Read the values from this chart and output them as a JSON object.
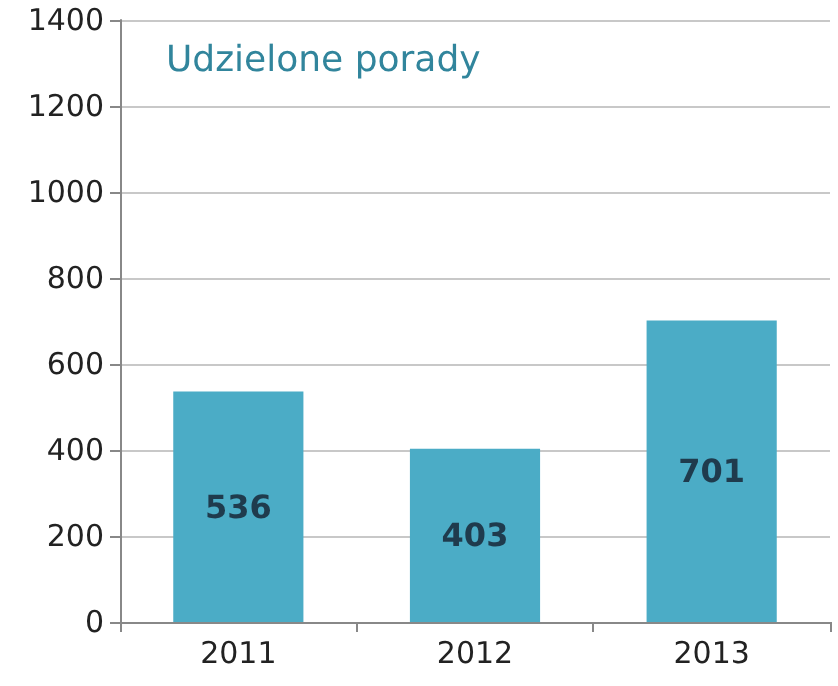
{
  "chart_data": {
    "type": "bar",
    "title": "Udzielone porady",
    "categories": [
      "2011",
      "2012",
      "2013"
    ],
    "values": [
      536,
      403,
      701
    ],
    "color": "#4bacc6",
    "ylim": [
      0,
      1400
    ],
    "yticks": [
      0,
      200,
      400,
      600,
      800,
      1000,
      1200,
      1400
    ],
    "grid": "y",
    "data_labels": true
  }
}
